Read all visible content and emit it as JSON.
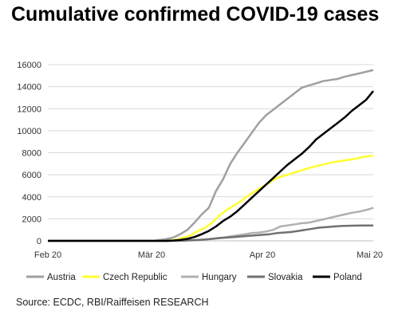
{
  "title": "Cumulative confirmed COVID-19 cases",
  "source": "Source: ECDC, RBI/Raiffeisen RESEARCH",
  "chart_data": {
    "type": "line",
    "title": "Cumulative confirmed COVID-19 cases",
    "xlabel": "",
    "ylabel": "",
    "x_ticks": [
      "Feb 20",
      "Mär 20",
      "Apr 20",
      "Mai 20"
    ],
    "x_tick_days": [
      0,
      29,
      60,
      90
    ],
    "xlim_days": [
      0,
      91
    ],
    "ylim": [
      0,
      16000
    ],
    "y_ticks": [
      0,
      2000,
      4000,
      6000,
      8000,
      10000,
      12000,
      14000,
      16000
    ],
    "grid": true,
    "legend_position": "bottom",
    "series": [
      {
        "name": "Austria",
        "color": "#a0a0a0",
        "width": 2.5,
        "points": [
          [
            0,
            0
          ],
          [
            25,
            0
          ],
          [
            28,
            5
          ],
          [
            30,
            30
          ],
          [
            33,
            150
          ],
          [
            35,
            300
          ],
          [
            37,
            600
          ],
          [
            39,
            1000
          ],
          [
            41,
            1650
          ],
          [
            43,
            2400
          ],
          [
            45,
            3000
          ],
          [
            47,
            4500
          ],
          [
            49,
            5600
          ],
          [
            51,
            7000
          ],
          [
            53,
            8000
          ],
          [
            55,
            8900
          ],
          [
            57,
            9800
          ],
          [
            59,
            10700
          ],
          [
            61,
            11400
          ],
          [
            63,
            11900
          ],
          [
            65,
            12400
          ],
          [
            67,
            12900
          ],
          [
            69,
            13400
          ],
          [
            71,
            13900
          ],
          [
            73,
            14100
          ],
          [
            75,
            14300
          ],
          [
            77,
            14500
          ],
          [
            79,
            14600
          ],
          [
            81,
            14700
          ],
          [
            83,
            14900
          ],
          [
            85,
            15050
          ],
          [
            87,
            15200
          ],
          [
            89,
            15350
          ],
          [
            91,
            15500
          ]
        ]
      },
      {
        "name": "Czech Republic",
        "color": "#ffff33",
        "width": 2.5,
        "points": [
          [
            0,
            0
          ],
          [
            30,
            0
          ],
          [
            32,
            5
          ],
          [
            34,
            30
          ],
          [
            36,
            120
          ],
          [
            38,
            300
          ],
          [
            40,
            500
          ],
          [
            42,
            900
          ],
          [
            44,
            1200
          ],
          [
            46,
            1650
          ],
          [
            48,
            2300
          ],
          [
            50,
            2800
          ],
          [
            52,
            3200
          ],
          [
            54,
            3600
          ],
          [
            56,
            4100
          ],
          [
            58,
            4500
          ],
          [
            60,
            4900
          ],
          [
            62,
            5300
          ],
          [
            64,
            5700
          ],
          [
            66,
            5900
          ],
          [
            68,
            6100
          ],
          [
            70,
            6300
          ],
          [
            72,
            6500
          ],
          [
            74,
            6700
          ],
          [
            76,
            6850
          ],
          [
            78,
            7000
          ],
          [
            80,
            7150
          ],
          [
            82,
            7250
          ],
          [
            84,
            7350
          ],
          [
            86,
            7450
          ],
          [
            88,
            7600
          ],
          [
            90,
            7700
          ],
          [
            91,
            7750
          ]
        ]
      },
      {
        "name": "Hungary",
        "color": "#b0b0b0",
        "width": 2.5,
        "points": [
          [
            0,
            0
          ],
          [
            33,
            0
          ],
          [
            35,
            5
          ],
          [
            37,
            15
          ],
          [
            39,
            30
          ],
          [
            41,
            50
          ],
          [
            43,
            100
          ],
          [
            45,
            150
          ],
          [
            47,
            230
          ],
          [
            49,
            300
          ],
          [
            51,
            400
          ],
          [
            53,
            500
          ],
          [
            55,
            600
          ],
          [
            57,
            700
          ],
          [
            59,
            750
          ],
          [
            61,
            850
          ],
          [
            63,
            1000
          ],
          [
            65,
            1300
          ],
          [
            67,
            1400
          ],
          [
            69,
            1500
          ],
          [
            71,
            1600
          ],
          [
            73,
            1650
          ],
          [
            75,
            1800
          ],
          [
            77,
            1950
          ],
          [
            79,
            2100
          ],
          [
            81,
            2250
          ],
          [
            83,
            2400
          ],
          [
            85,
            2550
          ],
          [
            87,
            2650
          ],
          [
            89,
            2800
          ],
          [
            91,
            3000
          ]
        ]
      },
      {
        "name": "Slovakia",
        "color": "#707070",
        "width": 2.5,
        "points": [
          [
            0,
            0
          ],
          [
            34,
            0
          ],
          [
            36,
            5
          ],
          [
            38,
            20
          ],
          [
            40,
            50
          ],
          [
            42,
            80
          ],
          [
            44,
            120
          ],
          [
            46,
            180
          ],
          [
            48,
            250
          ],
          [
            50,
            300
          ],
          [
            52,
            350
          ],
          [
            54,
            400
          ],
          [
            56,
            450
          ],
          [
            58,
            500
          ],
          [
            60,
            550
          ],
          [
            62,
            600
          ],
          [
            64,
            700
          ],
          [
            66,
            750
          ],
          [
            68,
            800
          ],
          [
            70,
            900
          ],
          [
            72,
            1000
          ],
          [
            74,
            1100
          ],
          [
            76,
            1200
          ],
          [
            78,
            1250
          ],
          [
            80,
            1300
          ],
          [
            82,
            1350
          ],
          [
            84,
            1370
          ],
          [
            86,
            1380
          ],
          [
            88,
            1390
          ],
          [
            91,
            1400
          ]
        ]
      },
      {
        "name": "Poland",
        "color": "#000000",
        "width": 2.5,
        "points": [
          [
            0,
            0
          ],
          [
            33,
            0
          ],
          [
            35,
            30
          ],
          [
            37,
            80
          ],
          [
            39,
            180
          ],
          [
            41,
            350
          ],
          [
            43,
            600
          ],
          [
            45,
            900
          ],
          [
            47,
            1300
          ],
          [
            49,
            1800
          ],
          [
            51,
            2200
          ],
          [
            53,
            2700
          ],
          [
            55,
            3300
          ],
          [
            57,
            3900
          ],
          [
            59,
            4500
          ],
          [
            61,
            5100
          ],
          [
            63,
            5700
          ],
          [
            65,
            6300
          ],
          [
            67,
            6900
          ],
          [
            69,
            7400
          ],
          [
            71,
            7900
          ],
          [
            73,
            8500
          ],
          [
            75,
            9200
          ],
          [
            77,
            9700
          ],
          [
            79,
            10200
          ],
          [
            81,
            10700
          ],
          [
            83,
            11200
          ],
          [
            85,
            11800
          ],
          [
            87,
            12300
          ],
          [
            89,
            12800
          ],
          [
            91,
            13600
          ]
        ]
      }
    ]
  }
}
